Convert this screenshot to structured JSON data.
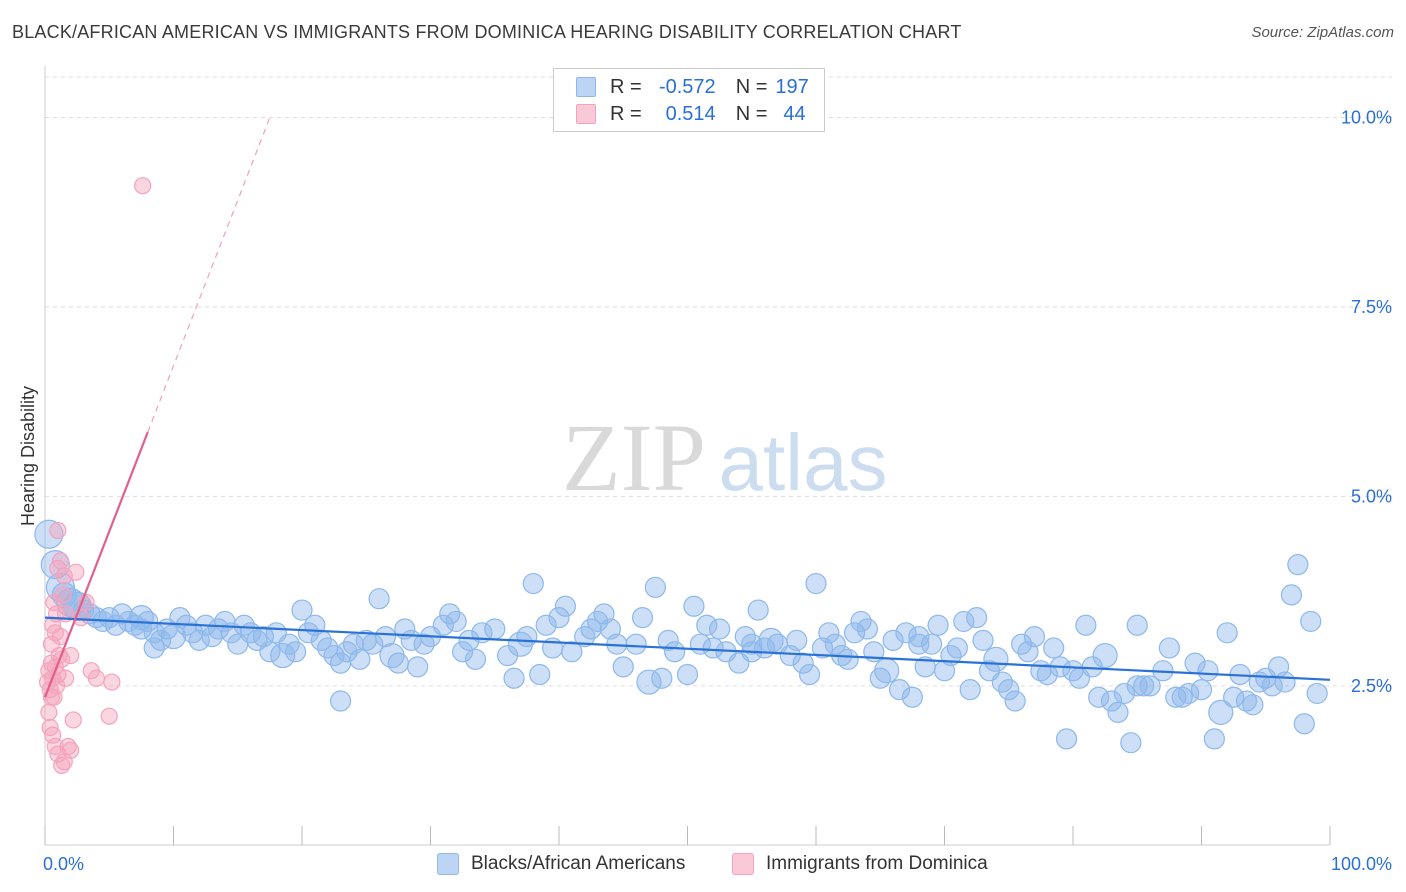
{
  "chart_data": {
    "type": "scatter",
    "title": "BLACK/AFRICAN AMERICAN VS IMMIGRANTS FROM DOMINICA HEARING DISABILITY CORRELATION CHART",
    "source": "Source: ZipAtlas.com",
    "watermark": {
      "bold": "ZIP",
      "light": "atlas"
    },
    "ylabel": "Hearing Disability",
    "xlim": [
      0,
      100
    ],
    "ylim": [
      0.4,
      10.6
    ],
    "x_tick_labels": [
      "0.0%",
      "100.0%"
    ],
    "y_ticks": [
      {
        "value": 2.5,
        "label": "2.5%"
      },
      {
        "value": 5.0,
        "label": "5.0%"
      },
      {
        "value": 7.5,
        "label": "7.5%"
      },
      {
        "value": 10.0,
        "label": "10.0%"
      }
    ],
    "stats": [
      {
        "r_label": "R =",
        "r_value": "-0.572",
        "n_label": "N =",
        "n_value": "197"
      },
      {
        "r_label": "R =",
        "r_value": "0.514",
        "n_label": "N =",
        "n_value": "44"
      }
    ],
    "series": [
      {
        "name": "Blacks/African Americans",
        "color": "#8db8ec",
        "line_color": "#2a72d5",
        "trend": {
          "x0": 0,
          "y0": 3.4,
          "x1": 100,
          "y1": 2.58
        },
        "points": [
          [
            0.3,
            4.5
          ],
          [
            0.8,
            4.1
          ],
          [
            1.2,
            3.8
          ],
          [
            1.5,
            3.7
          ],
          [
            2,
            3.6
          ],
          [
            2.5,
            3.55
          ],
          [
            3,
            3.5
          ],
          [
            3.5,
            3.45
          ],
          [
            4,
            3.4
          ],
          [
            4.5,
            3.35
          ],
          [
            5,
            3.4
          ],
          [
            5.5,
            3.3
          ],
          [
            6,
            3.45
          ],
          [
            6.5,
            3.35
          ],
          [
            7,
            3.3
          ],
          [
            7.5,
            3.25
          ],
          [
            8,
            3.35
          ],
          [
            8.5,
            3.2
          ],
          [
            9,
            3.1
          ],
          [
            9.5,
            3.25
          ],
          [
            10,
            3.15
          ],
          [
            10.5,
            3.4
          ],
          [
            11,
            3.3
          ],
          [
            11.5,
            3.2
          ],
          [
            12,
            3.1
          ],
          [
            12.5,
            3.3
          ],
          [
            13,
            3.15
          ],
          [
            13.5,
            3.25
          ],
          [
            14,
            3.35
          ],
          [
            14.5,
            3.2
          ],
          [
            15,
            3.05
          ],
          [
            15.5,
            3.3
          ],
          [
            16,
            3.2
          ],
          [
            16.5,
            3.1
          ],
          [
            17,
            3.15
          ],
          [
            17.5,
            2.95
          ],
          [
            18,
            3.2
          ],
          [
            18.5,
            2.9
          ],
          [
            19,
            3.05
          ],
          [
            19.5,
            2.95
          ],
          [
            20,
            3.5
          ],
          [
            20.5,
            3.2
          ],
          [
            21,
            3.3
          ],
          [
            21.5,
            3.1
          ],
          [
            22,
            3.0
          ],
          [
            22.5,
            2.9
          ],
          [
            23,
            2.8
          ],
          [
            23.5,
            2.95
          ],
          [
            24,
            3.05
          ],
          [
            24.5,
            2.85
          ],
          [
            25,
            3.1
          ],
          [
            25.5,
            3.05
          ],
          [
            26,
            3.65
          ],
          [
            26.5,
            3.15
          ],
          [
            27,
            2.9
          ],
          [
            27.5,
            2.8
          ],
          [
            28,
            3.25
          ],
          [
            28.5,
            3.1
          ],
          [
            29,
            2.75
          ],
          [
            29.5,
            3.05
          ],
          [
            30,
            3.15
          ],
          [
            31,
            3.3
          ],
          [
            31.5,
            3.45
          ],
          [
            32,
            3.35
          ],
          [
            32.5,
            2.95
          ],
          [
            33,
            3.1
          ],
          [
            33.5,
            2.85
          ],
          [
            34,
            3.2
          ],
          [
            35,
            3.25
          ],
          [
            36,
            2.9
          ],
          [
            36.5,
            2.6
          ],
          [
            37,
            3.05
          ],
          [
            37.5,
            3.15
          ],
          [
            38,
            3.85
          ],
          [
            38.5,
            2.65
          ],
          [
            39,
            3.3
          ],
          [
            39.5,
            3.0
          ],
          [
            40,
            3.4
          ],
          [
            40.5,
            3.55
          ],
          [
            41,
            2.95
          ],
          [
            42,
            3.15
          ],
          [
            42.5,
            3.25
          ],
          [
            43,
            3.35
          ],
          [
            44,
            3.25
          ],
          [
            44.5,
            3.05
          ],
          [
            45,
            2.75
          ],
          [
            46,
            3.05
          ],
          [
            46.5,
            3.4
          ],
          [
            47,
            2.55
          ],
          [
            47.5,
            3.8
          ],
          [
            48,
            2.6
          ],
          [
            48.5,
            3.1
          ],
          [
            49,
            2.95
          ],
          [
            50,
            2.65
          ],
          [
            50.5,
            3.55
          ],
          [
            51,
            3.05
          ],
          [
            51.5,
            3.3
          ],
          [
            52,
            3.0
          ],
          [
            52.5,
            3.25
          ],
          [
            53,
            2.95
          ],
          [
            54,
            2.8
          ],
          [
            54.5,
            3.15
          ],
          [
            55,
            3.05
          ],
          [
            55.5,
            3.5
          ],
          [
            56,
            3.0
          ],
          [
            56.5,
            3.1
          ],
          [
            57,
            3.05
          ],
          [
            58,
            2.9
          ],
          [
            58.5,
            3.1
          ],
          [
            59,
            2.8
          ],
          [
            59.5,
            2.65
          ],
          [
            60,
            3.85
          ],
          [
            60.5,
            3.0
          ],
          [
            61,
            3.2
          ],
          [
            61.5,
            3.05
          ],
          [
            62,
            2.9
          ],
          [
            62.5,
            2.85
          ],
          [
            63,
            3.2
          ],
          [
            63.5,
            3.35
          ],
          [
            64,
            3.25
          ],
          [
            64.5,
            2.95
          ],
          [
            65,
            2.6
          ],
          [
            65.5,
            2.7
          ],
          [
            66,
            3.1
          ],
          [
            66.5,
            2.45
          ],
          [
            67,
            3.2
          ],
          [
            67.5,
            2.35
          ],
          [
            68,
            3.15
          ],
          [
            68.5,
            2.75
          ],
          [
            69,
            3.05
          ],
          [
            69.5,
            3.3
          ],
          [
            70,
            2.7
          ],
          [
            70.5,
            2.9
          ],
          [
            71,
            3.0
          ],
          [
            71.5,
            3.35
          ],
          [
            72,
            2.45
          ],
          [
            72.5,
            3.4
          ],
          [
            73,
            3.1
          ],
          [
            73.5,
            2.7
          ],
          [
            74,
            2.85
          ],
          [
            74.5,
            2.55
          ],
          [
            75,
            2.45
          ],
          [
            75.5,
            2.3
          ],
          [
            76,
            3.05
          ],
          [
            76.5,
            2.95
          ],
          [
            77,
            3.15
          ],
          [
            77.5,
            2.7
          ],
          [
            78,
            2.65
          ],
          [
            78.5,
            3.0
          ],
          [
            79,
            2.75
          ],
          [
            79.5,
            1.8
          ],
          [
            80,
            2.7
          ],
          [
            80.5,
            2.6
          ],
          [
            81,
            3.3
          ],
          [
            81.5,
            2.75
          ],
          [
            82,
            2.35
          ],
          [
            82.5,
            2.9
          ],
          [
            83,
            2.3
          ],
          [
            83.5,
            2.15
          ],
          [
            84,
            2.4
          ],
          [
            84.5,
            1.75
          ],
          [
            85,
            3.3
          ],
          [
            85.5,
            2.5
          ],
          [
            86,
            2.5
          ],
          [
            87,
            2.7
          ],
          [
            87.5,
            3.0
          ],
          [
            88,
            2.35
          ],
          [
            88.5,
            2.35
          ],
          [
            89,
            2.4
          ],
          [
            89.5,
            2.8
          ],
          [
            90,
            2.45
          ],
          [
            90.5,
            2.7
          ],
          [
            91,
            1.8
          ],
          [
            91.5,
            2.15
          ],
          [
            92,
            3.2
          ],
          [
            92.5,
            2.35
          ],
          [
            93,
            2.65
          ],
          [
            93.5,
            2.3
          ],
          [
            94,
            2.25
          ],
          [
            94.5,
            2.55
          ],
          [
            95,
            2.6
          ],
          [
            95.5,
            2.5
          ],
          [
            96,
            2.75
          ],
          [
            96.5,
            2.55
          ],
          [
            97,
            3.7
          ],
          [
            97.5,
            4.1
          ],
          [
            98,
            2.0
          ],
          [
            98.5,
            3.35
          ],
          [
            99,
            2.4
          ],
          [
            2.5,
            3.55
          ],
          [
            7.5,
            3.4
          ],
          [
            8.5,
            3.0
          ],
          [
            23,
            2.3
          ],
          [
            43.5,
            3.45
          ],
          [
            55,
            2.95
          ],
          [
            68,
            3.05
          ],
          [
            85,
            2.5
          ]
        ]
      },
      {
        "name": "Immigrants from Dominica",
        "color": "#f5a3bd",
        "line_color": "#e2608a",
        "trend": {
          "x0": 0,
          "y0": 2.35,
          "x1": 8.0,
          "y1": 5.85
        },
        "trend_ext": {
          "x0": 8.0,
          "y0": 5.85,
          "x1": 17.5,
          "y1": 10.0
        },
        "points": [
          [
            0.2,
            2.55
          ],
          [
            0.3,
            2.7
          ],
          [
            0.4,
            2.45
          ],
          [
            0.5,
            2.8
          ],
          [
            0.6,
            2.6
          ],
          [
            0.7,
            2.35
          ],
          [
            0.8,
            2.75
          ],
          [
            0.9,
            2.5
          ],
          [
            1.0,
            2.65
          ],
          [
            1.1,
            2.9
          ],
          [
            0.3,
            2.15
          ],
          [
            0.5,
            3.05
          ],
          [
            0.6,
            3.3
          ],
          [
            0.7,
            3.6
          ],
          [
            0.9,
            3.45
          ],
          [
            1.0,
            4.05
          ],
          [
            1.2,
            3.15
          ],
          [
            1.3,
            2.85
          ],
          [
            1.4,
            3.7
          ],
          [
            1.6,
            2.6
          ],
          [
            0.4,
            1.95
          ],
          [
            0.6,
            1.85
          ],
          [
            0.8,
            1.7
          ],
          [
            1.0,
            1.6
          ],
          [
            1.3,
            1.45
          ],
          [
            1.5,
            1.5
          ],
          [
            1.8,
            1.7
          ],
          [
            2.0,
            1.65
          ],
          [
            2.2,
            2.05
          ],
          [
            0.5,
            2.35
          ],
          [
            1.0,
            4.55
          ],
          [
            1.2,
            4.15
          ],
          [
            1.6,
            3.45
          ],
          [
            2.0,
            2.9
          ],
          [
            2.4,
            4.0
          ],
          [
            2.8,
            3.4
          ],
          [
            3.2,
            3.6
          ],
          [
            3.6,
            2.7
          ],
          [
            4.0,
            2.6
          ],
          [
            5.0,
            2.1
          ],
          [
            5.2,
            2.55
          ],
          [
            7.6,
            9.1
          ],
          [
            0.8,
            3.2
          ],
          [
            1.5,
            3.95
          ]
        ]
      }
    ]
  }
}
